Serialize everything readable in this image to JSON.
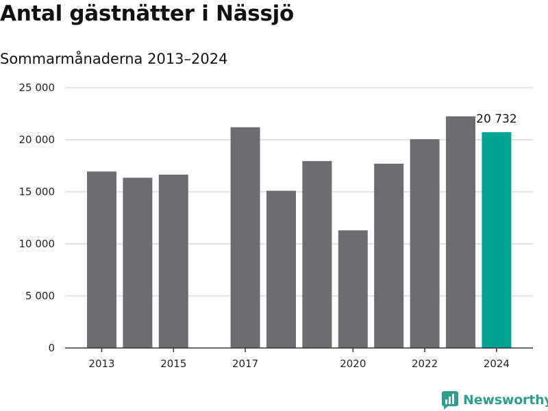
{
  "title": "Antal gästnätter i Nässjö",
  "subtitle": "Sommarmånaderna 2013–2024",
  "brand": {
    "name": "Newsworthy",
    "icon": "newsworthy-logo-icon",
    "color": "#2e9e8e"
  },
  "chart_data": {
    "type": "bar",
    "categories": [
      "2013",
      "2014",
      "2015",
      "2016",
      "2017",
      "2018",
      "2019",
      "2020",
      "2021",
      "2022",
      "2023",
      "2024"
    ],
    "values": [
      16950,
      16350,
      16650,
      null,
      21200,
      15100,
      17950,
      11300,
      17700,
      20050,
      22250,
      20732
    ],
    "x_tick_labels": [
      "2013",
      "",
      "2015",
      "",
      "2017",
      "",
      "",
      "2020",
      "",
      "2022",
      "",
      "2024"
    ],
    "ylim": [
      0,
      25000
    ],
    "y_ticks": [
      0,
      5000,
      10000,
      15000,
      20000,
      25000
    ],
    "y_tick_labels": [
      "0",
      "5 000",
      "10 000",
      "15 000",
      "20 000",
      "25 000"
    ],
    "highlight_index": 11,
    "highlight_label": "20 732",
    "colors": {
      "bar": "#6d6c71",
      "highlight": "#00a596",
      "grid": "#d9d9d9",
      "axis": "#333333"
    },
    "grid": true
  }
}
